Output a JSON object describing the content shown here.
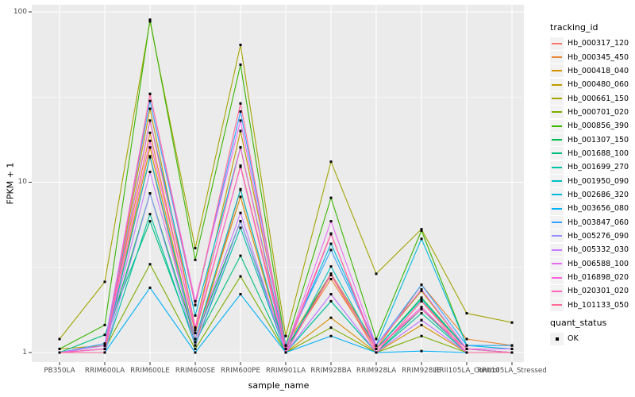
{
  "figure": {
    "y_axis_title": "FPKM + 1",
    "x_axis_title": "sample_name"
  },
  "chart_data": {
    "type": "line",
    "title": "",
    "xlabel": "sample_name",
    "ylabel": "FPKM + 1",
    "y_scale": "log10",
    "ylim": [
      1,
      100
    ],
    "y_ticks": [
      1,
      10,
      100
    ],
    "y_tick_labels": [
      "1",
      "10",
      "100"
    ],
    "y_minor_ticks": [
      3.1623,
      31.623
    ],
    "grid": "on",
    "panel_bg": "#EBEBEB",
    "grid_color": "#FFFFFF",
    "tick_color": "#333333",
    "tick_label_color": "#4D4D4D",
    "point_color": "#000000",
    "legend_position": "right",
    "legend_title": "tracking_id",
    "point_legend": {
      "title": "quant_status",
      "items": [
        {
          "label": "OK"
        }
      ]
    },
    "categories": [
      "PB350LA",
      "RRIM600LA",
      "RRIM600LE",
      "RRIM600SE",
      "RRIM600PE",
      "RRIM901LA",
      "RRIM928BA",
      "RRIM928LA",
      "RRIM928LE",
      "RRII105LA_Control",
      "RRII105LA_Stressed"
    ],
    "series": [
      {
        "name": "Hb_000317_120",
        "color": "#F8766D",
        "values": [
          1.0,
          1.05,
          14.0,
          1.1,
          9.0,
          1.0,
          2.85,
          1.0,
          2.0,
          1.05,
          1.0
        ]
      },
      {
        "name": "Hb_000345_450",
        "color": "#EA8331",
        "values": [
          1.0,
          1.1,
          19.5,
          1.3,
          12.5,
          1.05,
          2.7,
          1.05,
          2.5,
          1.2,
          1.1
        ]
      },
      {
        "name": "Hb_000418_040",
        "color": "#D89000",
        "values": [
          1.0,
          1.0,
          16.0,
          1.2,
          8.2,
          1.0,
          1.6,
          1.0,
          1.45,
          1.0,
          1.0
        ]
      },
      {
        "name": "Hb_000480_060",
        "color": "#C09B00",
        "values": [
          1.05,
          1.1,
          27.0,
          1.4,
          20.0,
          1.1,
          2.9,
          1.1,
          2.3,
          1.05,
          1.05
        ]
      },
      {
        "name": "Hb_000661_150",
        "color": "#A3A500",
        "values": [
          1.2,
          2.6,
          88.0,
          4.1,
          64.0,
          1.25,
          13.2,
          2.9,
          5.3,
          1.7,
          1.5
        ]
      },
      {
        "name": "Hb_000701_020",
        "color": "#7CAE00",
        "values": [
          1.0,
          1.05,
          3.3,
          1.05,
          2.8,
          1.0,
          1.4,
          1.0,
          1.25,
          1.0,
          1.0
        ]
      },
      {
        "name": "Hb_000856_390",
        "color": "#39B600",
        "values": [
          1.05,
          1.45,
          90.0,
          3.5,
          49.0,
          1.1,
          8.1,
          1.2,
          5.2,
          1.1,
          1.1
        ]
      },
      {
        "name": "Hb_001307_150",
        "color": "#00BB4E",
        "values": [
          1.0,
          1.1,
          8.6,
          1.2,
          5.9,
          1.05,
          2.9,
          1.05,
          2.1,
          1.05,
          1.0
        ]
      },
      {
        "name": "Hb_001688_100",
        "color": "#00BF7D",
        "values": [
          1.0,
          1.27,
          5.9,
          1.15,
          3.7,
          1.0,
          2.0,
          1.0,
          1.8,
          1.0,
          1.0
        ]
      },
      {
        "name": "Hb_001699_270",
        "color": "#00C1A3",
        "values": [
          1.0,
          1.0,
          6.5,
          1.1,
          5.4,
          1.0,
          2.0,
          1.0,
          1.7,
          1.0,
          1.0
        ]
      },
      {
        "name": "Hb_001950_090",
        "color": "#00BFC4",
        "values": [
          1.0,
          1.05,
          14.2,
          1.2,
          9.1,
          1.0,
          3.2,
          1.05,
          2.05,
          1.05,
          1.0
        ]
      },
      {
        "name": "Hb_002686_320",
        "color": "#00BAE0",
        "values": [
          1.0,
          1.1,
          23.0,
          1.65,
          16.0,
          1.05,
          4.35,
          1.1,
          4.65,
          1.1,
          1.05
        ]
      },
      {
        "name": "Hb_003656_080",
        "color": "#00B0F6",
        "values": [
          1.0,
          1.0,
          2.4,
          1.0,
          2.2,
          1.0,
          1.25,
          1.0,
          1.02,
          1.0,
          1.0
        ]
      },
      {
        "name": "Hb_003847_060",
        "color": "#35A2FF",
        "values": [
          1.0,
          1.13,
          30.0,
          1.9,
          26.0,
          1.1,
          4.0,
          1.1,
          2.5,
          1.1,
          1.1
        ]
      },
      {
        "name": "Hb_005276_090",
        "color": "#9590FF",
        "values": [
          1.0,
          1.0,
          8.6,
          1.1,
          5.9,
          1.0,
          2.2,
          1.0,
          1.55,
          1.0,
          1.0
        ]
      },
      {
        "name": "Hb_005332_030",
        "color": "#C77CFF",
        "values": [
          1.0,
          1.05,
          11.5,
          1.2,
          6.6,
          1.0,
          2.2,
          1.0,
          1.55,
          1.0,
          1.0
        ]
      },
      {
        "name": "Hb_006588_100",
        "color": "#E76BF3",
        "values": [
          1.0,
          1.1,
          33.0,
          2.0,
          23.0,
          1.05,
          5.9,
          1.1,
          2.35,
          1.05,
          1.05
        ]
      },
      {
        "name": "Hb_016898_020",
        "color": "#FA62DB",
        "values": [
          1.0,
          1.05,
          17.5,
          1.35,
          12.3,
          1.0,
          4.95,
          1.05,
          1.85,
          1.0,
          1.0
        ]
      },
      {
        "name": "Hb_020301_020",
        "color": "#FF62BC",
        "values": [
          1.0,
          1.05,
          23.0,
          1.4,
          16.0,
          1.0,
          2.9,
          1.05,
          1.8,
          1.05,
          1.0
        ]
      },
      {
        "name": "Hb_101133_050",
        "color": "#FF6A98",
        "values": [
          1.0,
          1.0,
          33.0,
          1.9,
          29.0,
          1.05,
          5.0,
          1.0,
          2.0,
          1.0,
          1.0
        ]
      }
    ]
  }
}
